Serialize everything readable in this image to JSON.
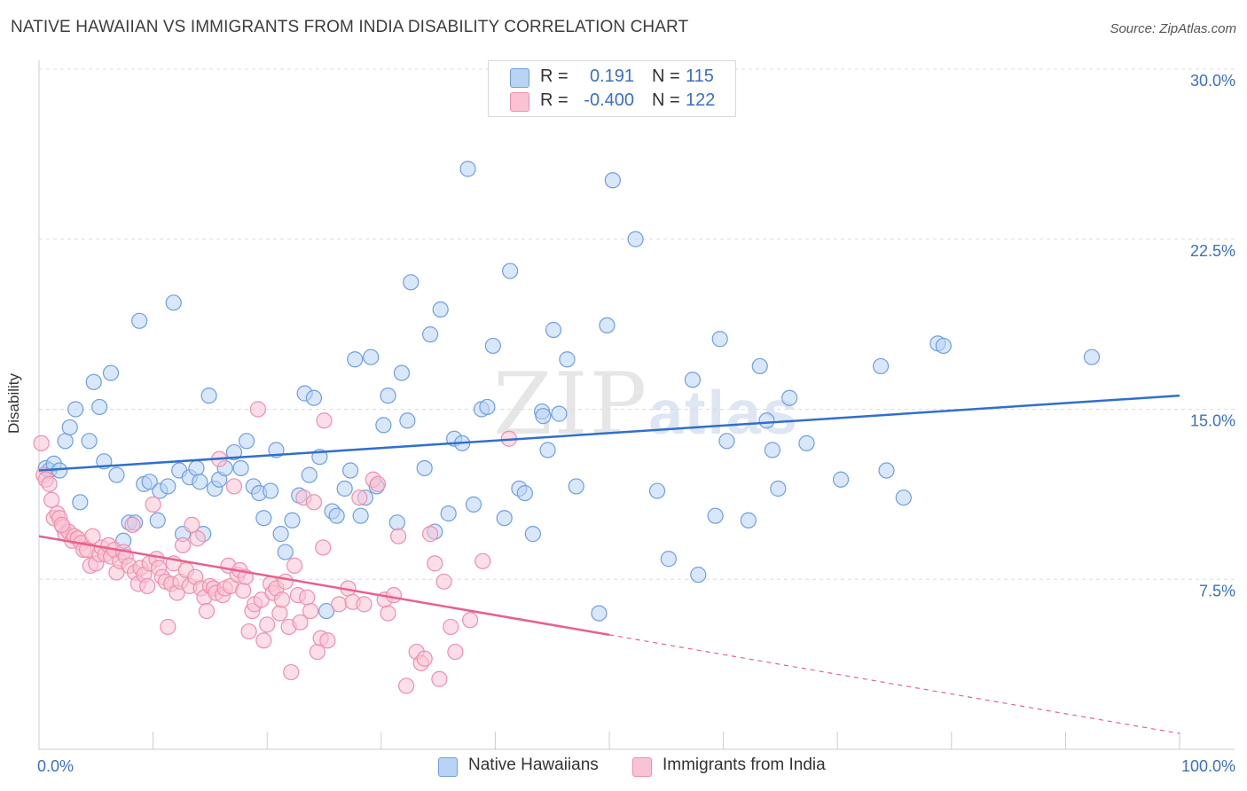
{
  "title": "NATIVE HAWAIIAN VS IMMIGRANTS FROM INDIA DISABILITY CORRELATION CHART",
  "source": "Source: ZipAtlas.com",
  "watermark": {
    "zip": "ZIP",
    "atlas": "atlas"
  },
  "legend_stats": [
    {
      "r_label": "R =",
      "r_value": "0.191",
      "n_label": "N =",
      "n_value": "115",
      "color": "#b9d3f5",
      "border": "#6e9fe0"
    },
    {
      "r_label": "R =",
      "r_value": "-0.400",
      "n_label": "N =",
      "n_value": "122",
      "color": "#f9c3d3",
      "border": "#ee8fae"
    }
  ],
  "chart_data": {
    "type": "scatter",
    "title": "NATIVE HAWAIIAN VS IMMIGRANTS FROM INDIA DISABILITY CORRELATION CHART",
    "xlabel": "",
    "ylabel": "Disability",
    "xlim": [
      0,
      100
    ],
    "ylim": [
      0,
      30
    ],
    "x_ticks": [
      {
        "value": 0,
        "label": "0.0%"
      },
      {
        "value": 100,
        "label": "100.0%"
      }
    ],
    "y_ticks": [
      {
        "value": 7.5,
        "label": "7.5%"
      },
      {
        "value": 15,
        "label": "15.0%"
      },
      {
        "value": 22.5,
        "label": "22.5%"
      },
      {
        "value": 30,
        "label": "30.0%"
      }
    ],
    "grid": "horizontal dashed",
    "legend_position": "bottom-center",
    "series": [
      {
        "name": "Native Hawaiians",
        "color": "#6e9fe0",
        "fill": "#b9d3f5",
        "trend": {
          "x": [
            0,
            100
          ],
          "y": [
            12.3,
            15.6
          ],
          "dashed_from": null
        },
        "points": [
          [
            0.6,
            12.4
          ],
          [
            0.9,
            12.3
          ],
          [
            1.3,
            12.6
          ],
          [
            1.8,
            12.3
          ],
          [
            2.3,
            13.6
          ],
          [
            2.7,
            14.2
          ],
          [
            3.2,
            15
          ],
          [
            3.6,
            10.9
          ],
          [
            4.4,
            13.6
          ],
          [
            4.8,
            16.2
          ],
          [
            5.3,
            15.1
          ],
          [
            5.7,
            12.7
          ],
          [
            6.3,
            16.6
          ],
          [
            6.8,
            12.1
          ],
          [
            7.4,
            9.2
          ],
          [
            7.9,
            10
          ],
          [
            8.4,
            10
          ],
          [
            8.8,
            18.9
          ],
          [
            9.2,
            11.7
          ],
          [
            9.7,
            11.8
          ],
          [
            10.4,
            10.1
          ],
          [
            10.6,
            11.4
          ],
          [
            11.3,
            11.6
          ],
          [
            11.8,
            19.7
          ],
          [
            12.3,
            12.3
          ],
          [
            12.6,
            9.5
          ],
          [
            13.2,
            12
          ],
          [
            13.8,
            12.4
          ],
          [
            14.1,
            11.8
          ],
          [
            14.4,
            9.5
          ],
          [
            14.9,
            15.6
          ],
          [
            15.4,
            11.5
          ],
          [
            15.8,
            11.9
          ],
          [
            16.3,
            12.4
          ],
          [
            17.1,
            13.1
          ],
          [
            17.7,
            12.4
          ],
          [
            18.2,
            13.6
          ],
          [
            18.8,
            11.6
          ],
          [
            19.3,
            11.3
          ],
          [
            19.7,
            10.2
          ],
          [
            20.3,
            11.4
          ],
          [
            20.8,
            13.2
          ],
          [
            21.2,
            9.5
          ],
          [
            21.6,
            8.7
          ],
          [
            22.2,
            10.1
          ],
          [
            22.8,
            11.2
          ],
          [
            23.3,
            15.7
          ],
          [
            23.7,
            12.1
          ],
          [
            24.1,
            15.5
          ],
          [
            24.6,
            12.9
          ],
          [
            25.2,
            6.1
          ],
          [
            25.7,
            10.5
          ],
          [
            26.1,
            10.3
          ],
          [
            26.8,
            11.5
          ],
          [
            27.3,
            12.3
          ],
          [
            27.7,
            17.2
          ],
          [
            28.2,
            10.3
          ],
          [
            28.6,
            11.1
          ],
          [
            29.1,
            17.3
          ],
          [
            29.6,
            11.6
          ],
          [
            30.2,
            14.3
          ],
          [
            30.6,
            15.6
          ],
          [
            31.4,
            10
          ],
          [
            31.8,
            16.6
          ],
          [
            32.3,
            14.5
          ],
          [
            32.6,
            20.6
          ],
          [
            33.8,
            12.4
          ],
          [
            34.3,
            18.3
          ],
          [
            34.7,
            9.6
          ],
          [
            35.2,
            19.4
          ],
          [
            35.9,
            10.4
          ],
          [
            36.4,
            13.7
          ],
          [
            37.1,
            13.5
          ],
          [
            37.6,
            25.6
          ],
          [
            38.1,
            10.8
          ],
          [
            38.8,
            15
          ],
          [
            39.3,
            15.1
          ],
          [
            39.8,
            17.8
          ],
          [
            40.8,
            10.2
          ],
          [
            41.3,
            21.1
          ],
          [
            42.1,
            11.5
          ],
          [
            42.6,
            11.3
          ],
          [
            43.3,
            9.5
          ],
          [
            44.1,
            14.9
          ],
          [
            44.6,
            13.2
          ],
          [
            45.1,
            18.5
          ],
          [
            45.6,
            14.8
          ],
          [
            46.3,
            17.2
          ],
          [
            47.1,
            11.6
          ],
          [
            49.1,
            6
          ],
          [
            49.8,
            18.7
          ],
          [
            50.3,
            25.1
          ],
          [
            52.3,
            22.5
          ],
          [
            54.2,
            11.4
          ],
          [
            55.2,
            8.4
          ],
          [
            57.3,
            16.3
          ],
          [
            57.8,
            7.7
          ],
          [
            59.3,
            10.3
          ],
          [
            59.7,
            18.1
          ],
          [
            60.3,
            13.6
          ],
          [
            62.2,
            10.1
          ],
          [
            63.2,
            16.9
          ],
          [
            63.8,
            14.5
          ],
          [
            64.3,
            13.2
          ],
          [
            64.8,
            11.5
          ],
          [
            65.8,
            15.5
          ],
          [
            67.3,
            13.5
          ],
          [
            70.3,
            11.9
          ],
          [
            73.8,
            16.9
          ],
          [
            74.3,
            12.3
          ],
          [
            75.8,
            11.1
          ],
          [
            78.8,
            17.9
          ],
          [
            79.3,
            17.8
          ],
          [
            92.3,
            17.3
          ],
          [
            44.2,
            14.7
          ]
        ]
      },
      {
        "name": "Immigrants from India",
        "color": "#ee8fae",
        "fill": "#f9c3d3",
        "trend": {
          "x": [
            0,
            100
          ],
          "y": [
            9.4,
            0.7
          ],
          "solid_until": 50
        },
        "points": [
          [
            0.2,
            13.5
          ],
          [
            0.4,
            12.1
          ],
          [
            0.6,
            11.9
          ],
          [
            0.9,
            11.7
          ],
          [
            1.1,
            11
          ],
          [
            1.3,
            10.2
          ],
          [
            1.6,
            10.4
          ],
          [
            1.8,
            10.2
          ],
          [
            2.1,
            9.8
          ],
          [
            2.3,
            9.5
          ],
          [
            2.6,
            9.6
          ],
          [
            2.9,
            9.2
          ],
          [
            3.1,
            9.4
          ],
          [
            3.4,
            9.3
          ],
          [
            3.7,
            9.1
          ],
          [
            3.9,
            8.8
          ],
          [
            4.2,
            8.8
          ],
          [
            4.5,
            8.1
          ],
          [
            4.7,
            9.4
          ],
          [
            5,
            8.2
          ],
          [
            5.3,
            8.6
          ],
          [
            5.5,
            8.9
          ],
          [
            5.8,
            8.6
          ],
          [
            6.1,
            9
          ],
          [
            6.3,
            8.5
          ],
          [
            6.6,
            8.8
          ],
          [
            6.8,
            7.8
          ],
          [
            7.1,
            8.3
          ],
          [
            7.4,
            8.7
          ],
          [
            7.6,
            8.5
          ],
          [
            7.9,
            8.1
          ],
          [
            8.2,
            9.9
          ],
          [
            8.4,
            7.8
          ],
          [
            8.7,
            7.3
          ],
          [
            8.9,
            8
          ],
          [
            9.2,
            7.7
          ],
          [
            9.5,
            7.2
          ],
          [
            9.7,
            8.2
          ],
          [
            10,
            10.8
          ],
          [
            10.3,
            8.4
          ],
          [
            10.5,
            8
          ],
          [
            10.8,
            7.6
          ],
          [
            11.1,
            7.4
          ],
          [
            11.3,
            5.4
          ],
          [
            11.6,
            7.3
          ],
          [
            11.8,
            8.2
          ],
          [
            12.1,
            6.9
          ],
          [
            12.4,
            7.4
          ],
          [
            12.6,
            9
          ],
          [
            12.9,
            7.9
          ],
          [
            13.2,
            7.2
          ],
          [
            13.4,
            9.9
          ],
          [
            13.7,
            7.6
          ],
          [
            13.9,
            9.3
          ],
          [
            14.2,
            7.1
          ],
          [
            14.5,
            6.7
          ],
          [
            14.7,
            6.1
          ],
          [
            15,
            7.2
          ],
          [
            15.3,
            7.1
          ],
          [
            15.5,
            6.9
          ],
          [
            15.8,
            12.8
          ],
          [
            16.1,
            6.8
          ],
          [
            16.3,
            7.1
          ],
          [
            16.6,
            8.1
          ],
          [
            16.8,
            7.2
          ],
          [
            17.1,
            11.6
          ],
          [
            17.4,
            7.7
          ],
          [
            17.6,
            7.9
          ],
          [
            17.9,
            7
          ],
          [
            18.1,
            7.6
          ],
          [
            18.4,
            5.2
          ],
          [
            18.7,
            6.1
          ],
          [
            18.9,
            6.4
          ],
          [
            19.2,
            15
          ],
          [
            19.5,
            6.6
          ],
          [
            19.7,
            4.8
          ],
          [
            20,
            5.5
          ],
          [
            20.3,
            7.3
          ],
          [
            20.5,
            6.9
          ],
          [
            20.8,
            7.1
          ],
          [
            21.1,
            6
          ],
          [
            21.3,
            6.6
          ],
          [
            21.6,
            7.4
          ],
          [
            21.9,
            5.4
          ],
          [
            22.1,
            3.4
          ],
          [
            22.4,
            8.1
          ],
          [
            22.7,
            6.8
          ],
          [
            22.9,
            5.6
          ],
          [
            23.2,
            11.1
          ],
          [
            23.5,
            6.7
          ],
          [
            23.8,
            6.1
          ],
          [
            24.1,
            10.9
          ],
          [
            24.4,
            4.3
          ],
          [
            24.7,
            4.9
          ],
          [
            25,
            14.5
          ],
          [
            25.3,
            4.8
          ],
          [
            26.3,
            6.4
          ],
          [
            27.1,
            7.1
          ],
          [
            27.5,
            6.5
          ],
          [
            28.1,
            11.1
          ],
          [
            28.5,
            6.4
          ],
          [
            29.3,
            11.9
          ],
          [
            29.7,
            11.7
          ],
          [
            30.3,
            6.6
          ],
          [
            30.6,
            6
          ],
          [
            31.1,
            6.8
          ],
          [
            31.5,
            9.4
          ],
          [
            32.2,
            2.8
          ],
          [
            33.1,
            4.3
          ],
          [
            33.5,
            3.8
          ],
          [
            33.8,
            4
          ],
          [
            34.3,
            9.5
          ],
          [
            34.7,
            8.2
          ],
          [
            35.1,
            3.1
          ],
          [
            35.5,
            7.4
          ],
          [
            36.1,
            5.4
          ],
          [
            36.5,
            4.3
          ],
          [
            37.8,
            5.7
          ],
          [
            38.9,
            8.3
          ],
          [
            41.2,
            13.7
          ],
          [
            24.9,
            8.9
          ],
          [
            2.0,
            9.9
          ]
        ]
      }
    ]
  }
}
